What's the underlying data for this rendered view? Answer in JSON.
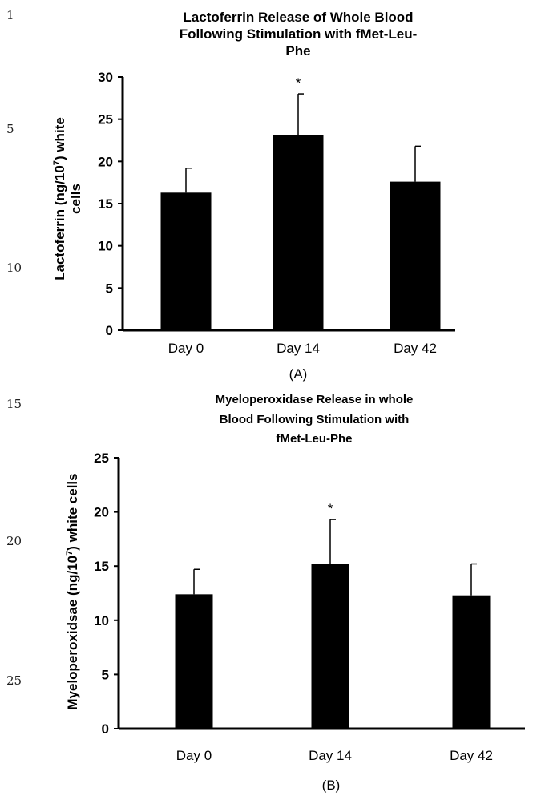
{
  "line_numbers": [
    "1",
    "5",
    "10",
    "15",
    "20",
    "25"
  ],
  "chart_data": [
    {
      "type": "bar",
      "title_lines": [
        "Lactoferrin Release of Whole Blood",
        "Following Stimulation with fMet-Leu-",
        "Phe"
      ],
      "ylabel_line1": "Lactoferrin (ng/10",
      "ylabel_sup": "7",
      "ylabel_line1_end": ") white",
      "ylabel_line2": "cells",
      "categories": [
        "Day 0",
        "Day 14",
        "Day 42"
      ],
      "values": [
        16.3,
        23.1,
        17.6
      ],
      "error_upper": [
        19.2,
        28.0,
        21.8
      ],
      "annotations": [
        "",
        "*",
        ""
      ],
      "ylim": [
        0,
        30
      ],
      "yticks": [
        0,
        5,
        10,
        15,
        20,
        25,
        30
      ],
      "panel_label": "(A)",
      "bar_color": "#000000"
    },
    {
      "type": "bar",
      "title_lines": [
        "Myeloperoxidase Release in whole",
        "Blood Following Stimulation with",
        "fMet-Leu-Phe"
      ],
      "ylabel_line1": "Myeloperoxidsae (ng/10",
      "ylabel_sup": "7",
      "ylabel_line1_end": ") white cells",
      "ylabel_line2": "",
      "categories": [
        "Day 0",
        "Day 14",
        "Day 42"
      ],
      "values": [
        12.4,
        15.2,
        12.3
      ],
      "error_upper": [
        14.7,
        19.3,
        15.2
      ],
      "annotations": [
        "",
        "*",
        ""
      ],
      "ylim": [
        0,
        25
      ],
      "yticks": [
        0,
        5,
        10,
        15,
        20,
        25
      ],
      "panel_label": "(B)",
      "bar_color": "#000000"
    }
  ]
}
